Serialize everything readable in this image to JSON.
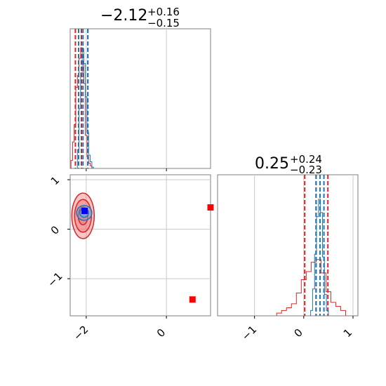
{
  "chart_data": [
    {
      "type": "histogram",
      "panel": "top-left",
      "title": {
        "value": "−2.12",
        "plus": "+0.16",
        "minus": "−0.15"
      },
      "xlim": [
        -2.4,
        1.1
      ],
      "grid": true,
      "series": [
        {
          "color": "#d62728",
          "bins": [
            {
              "x": -2.36,
              "h": 0.06
            },
            {
              "x": -2.32,
              "h": 0.2
            },
            {
              "x": -2.28,
              "h": 0.33
            },
            {
              "x": -2.24,
              "h": 0.61
            },
            {
              "x": -2.2,
              "h": 0.7
            },
            {
              "x": -2.16,
              "h": 0.83
            },
            {
              "x": -2.12,
              "h": 0.91
            },
            {
              "x": -2.08,
              "h": 0.85
            },
            {
              "x": -2.04,
              "h": 0.64
            },
            {
              "x": -2.0,
              "h": 0.25
            },
            {
              "x": -1.96,
              "h": 0.09
            },
            {
              "x": -1.92,
              "h": 0.04
            },
            {
              "x": -1.88,
              "h": 0.02
            }
          ],
          "quantiles": [
            -2.27,
            -2.12,
            -1.96
          ]
        },
        {
          "color": "#1f77b4",
          "bins": [
            {
              "x": -2.2,
              "h": 0.14
            },
            {
              "x": -2.16,
              "h": 0.45
            },
            {
              "x": -2.12,
              "h": 0.72
            },
            {
              "x": -2.08,
              "h": 0.9
            },
            {
              "x": -2.04,
              "h": 0.79
            },
            {
              "x": -2.0,
              "h": 0.54
            },
            {
              "x": -1.96,
              "h": 0.27
            },
            {
              "x": -1.92,
              "h": 0.1
            },
            {
              "x": -1.88,
              "h": 0.05
            },
            {
              "x": -1.84,
              "h": 0.01
            }
          ],
          "quantiles": [
            -2.19,
            -2.08,
            -1.96
          ]
        }
      ]
    },
    {
      "type": "histogram",
      "panel": "bottom-right",
      "title": {
        "value": "0.25",
        "plus": "+0.24",
        "minus": "−0.23"
      },
      "xlim": [
        -1.75,
        1.1
      ],
      "xticks": [
        -1,
        0,
        1
      ],
      "xtick_labels": [
        "−1",
        "0",
        "1"
      ],
      "grid": true,
      "series": [
        {
          "color": "#d62728",
          "bins": [
            {
              "x": -0.5,
              "h": 0.02
            },
            {
              "x": -0.4,
              "h": 0.04
            },
            {
              "x": -0.3,
              "h": 0.06
            },
            {
              "x": -0.2,
              "h": 0.09
            },
            {
              "x": -0.1,
              "h": 0.17
            },
            {
              "x": 0.0,
              "h": 0.27
            },
            {
              "x": 0.1,
              "h": 0.33
            },
            {
              "x": 0.2,
              "h": 0.4
            },
            {
              "x": 0.3,
              "h": 0.42
            },
            {
              "x": 0.4,
              "h": 0.32
            },
            {
              "x": 0.5,
              "h": 0.18
            },
            {
              "x": 0.6,
              "h": 0.1
            },
            {
              "x": 0.7,
              "h": 0.07
            },
            {
              "x": 0.8,
              "h": 0.04
            }
          ],
          "quantiles": [
            0.02,
            0.25,
            0.49
          ]
        },
        {
          "color": "#1f77b4",
          "bins": [
            {
              "x": 0.16,
              "h": 0.04
            },
            {
              "x": 0.2,
              "h": 0.2
            },
            {
              "x": 0.24,
              "h": 0.46
            },
            {
              "x": 0.28,
              "h": 0.74
            },
            {
              "x": 0.32,
              "h": 0.87
            },
            {
              "x": 0.36,
              "h": 0.77
            },
            {
              "x": 0.4,
              "h": 0.44
            },
            {
              "x": 0.44,
              "h": 0.16
            },
            {
              "x": 0.48,
              "h": 0.04
            }
          ],
          "quantiles": [
            0.25,
            0.33,
            0.41
          ]
        }
      ]
    },
    {
      "type": "scatter",
      "panel": "bottom-left",
      "xlim": [
        -2.4,
        1.1
      ],
      "ylim": [
        -1.75,
        1.1
      ],
      "xticks": [
        -2,
        0
      ],
      "xtick_labels": [
        "−2",
        "0"
      ],
      "yticks": [
        -1,
        0,
        1
      ],
      "ytick_labels": [
        "−1",
        "0",
        "1"
      ],
      "grid": true,
      "contours": [
        {
          "color": "#d62728",
          "fill": "#f08080",
          "cx": -2.08,
          "cy": 0.27,
          "levels": [
            {
              "rx": 0.28,
              "ry": 0.46
            },
            {
              "rx": 0.21,
              "ry": 0.33
            },
            {
              "rx": 0.12,
              "ry": 0.18
            }
          ]
        },
        {
          "color": "#1f77b4",
          "fill": "#6fa8dc",
          "cx": -2.05,
          "cy": 0.33,
          "levels": [
            {
              "rx": 0.19,
              "ry": 0.15
            },
            {
              "rx": 0.11,
              "ry": 0.09
            }
          ]
        }
      ],
      "markers": [
        {
          "x": -2.04,
          "y": 0.37,
          "color": "#0000ff",
          "shape": "square"
        },
        {
          "x": 0.65,
          "y": -1.42,
          "color": "#ff0000",
          "shape": "square"
        },
        {
          "x": 1.1,
          "y": 0.44,
          "color": "#ff0000",
          "shape": "square"
        }
      ]
    }
  ]
}
